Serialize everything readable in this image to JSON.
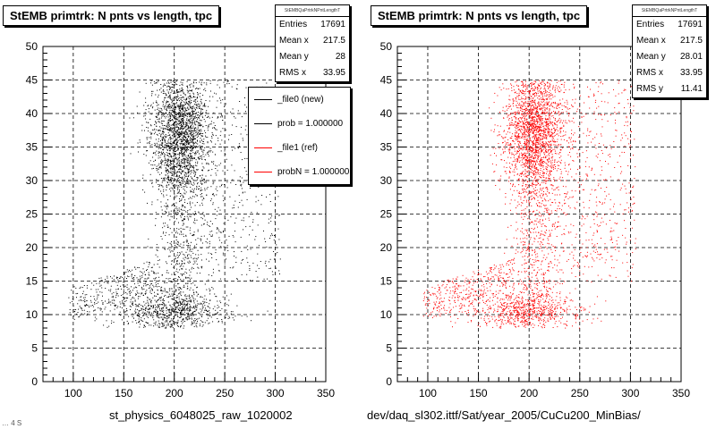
{
  "footer_text": "… 4 S",
  "chart_data": [
    {
      "type": "scatter",
      "title": "StEMB primtrk: N pnts vs length, tpc",
      "xlabel": "st_physics_6048025_raw_1020002",
      "ylabel": "",
      "xlim": [
        70,
        350
      ],
      "ylim": [
        0,
        50
      ],
      "xticks": [
        100,
        150,
        200,
        250,
        300,
        350
      ],
      "yticks": [
        0,
        5,
        10,
        15,
        20,
        25,
        30,
        35,
        40,
        45,
        50
      ],
      "grid": true,
      "color": "#000000",
      "stats": {
        "header": "StEMBQaPrtrkNPntLengthT",
        "rows": [
          {
            "label": "Entries",
            "value": "17691"
          },
          {
            "label": "Mean x",
            "value": "217.5"
          },
          {
            "label": "Mean y",
            "value": "28"
          },
          {
            "label": "RMS x",
            "value": "33.95"
          }
        ]
      },
      "legend": {
        "placement": "top-right",
        "entries": [
          {
            "label": "_file0 (new)",
            "color": "#000000"
          },
          {
            "label": "prob = 1.000000",
            "color": "#000000"
          },
          {
            "label": "_file1 (ref)",
            "color": "#ff0000"
          },
          {
            "label": "probN = 1.000000",
            "color": "#ff0000"
          }
        ]
      }
    },
    {
      "type": "scatter",
      "title": "StEMB primtrk: N pnts vs length, tpc",
      "xlabel": "dev/daq_sl302.ittf/Sat/year_2005/CuCu200_MinBias/",
      "ylabel": "",
      "xlim": [
        70,
        350
      ],
      "ylim": [
        0,
        50
      ],
      "xticks": [
        100,
        150,
        200,
        250,
        300,
        350
      ],
      "yticks": [
        0,
        5,
        10,
        15,
        20,
        25,
        30,
        35,
        40,
        45,
        50
      ],
      "grid": true,
      "color": "#ff0000",
      "stats": {
        "header": "StEMBQaPrtrkNPntLengthT",
        "rows": [
          {
            "label": "Entries",
            "value": "17691"
          },
          {
            "label": "Mean x",
            "value": "217.5"
          },
          {
            "label": "Mean y",
            "value": "28.01"
          },
          {
            "label": "RMS x",
            "value": "33.95"
          },
          {
            "label": "RMS y",
            "value": "11.41"
          }
        ]
      }
    }
  ]
}
